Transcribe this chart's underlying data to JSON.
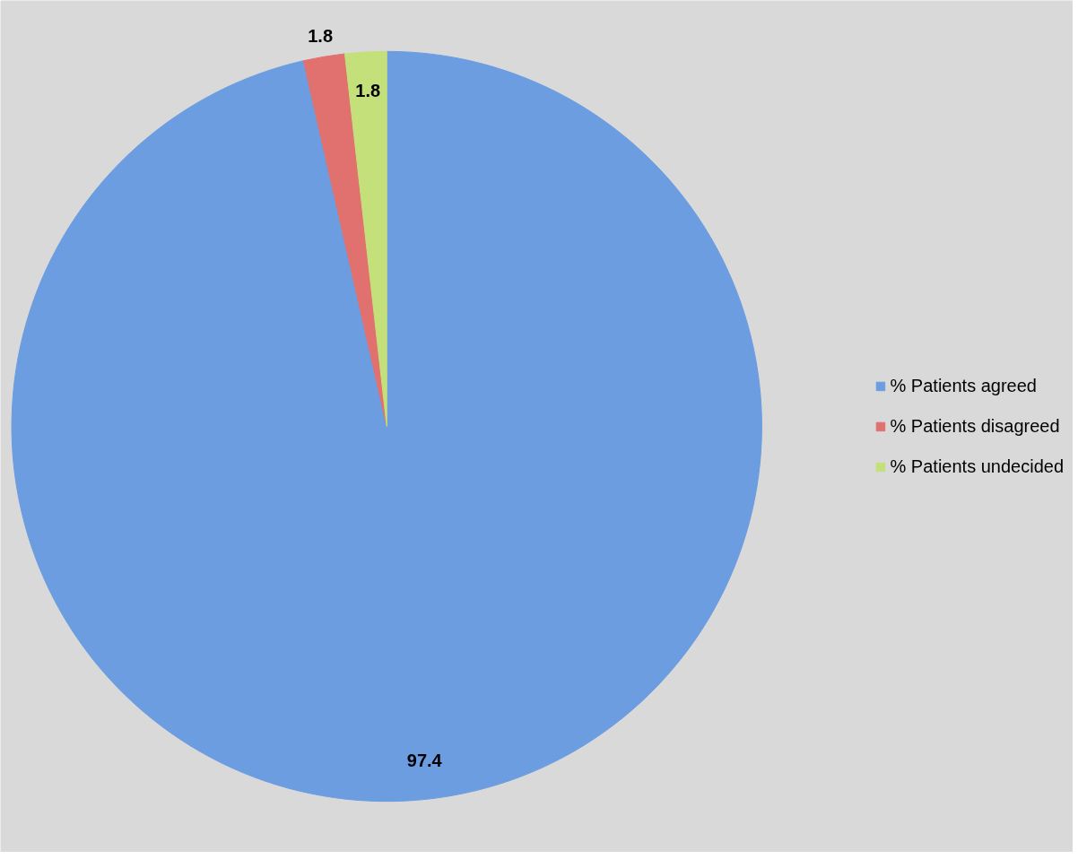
{
  "chart_data": {
    "type": "pie",
    "categories": [
      "% Patients agreed",
      "% Patients disagreed",
      "% Patients undecided"
    ],
    "values": [
      97.4,
      1.8,
      1.8
    ],
    "colors": [
      "#6c9de0",
      "#e0716f",
      "#c4e07a"
    ],
    "data_labels": true,
    "legend": "right"
  }
}
